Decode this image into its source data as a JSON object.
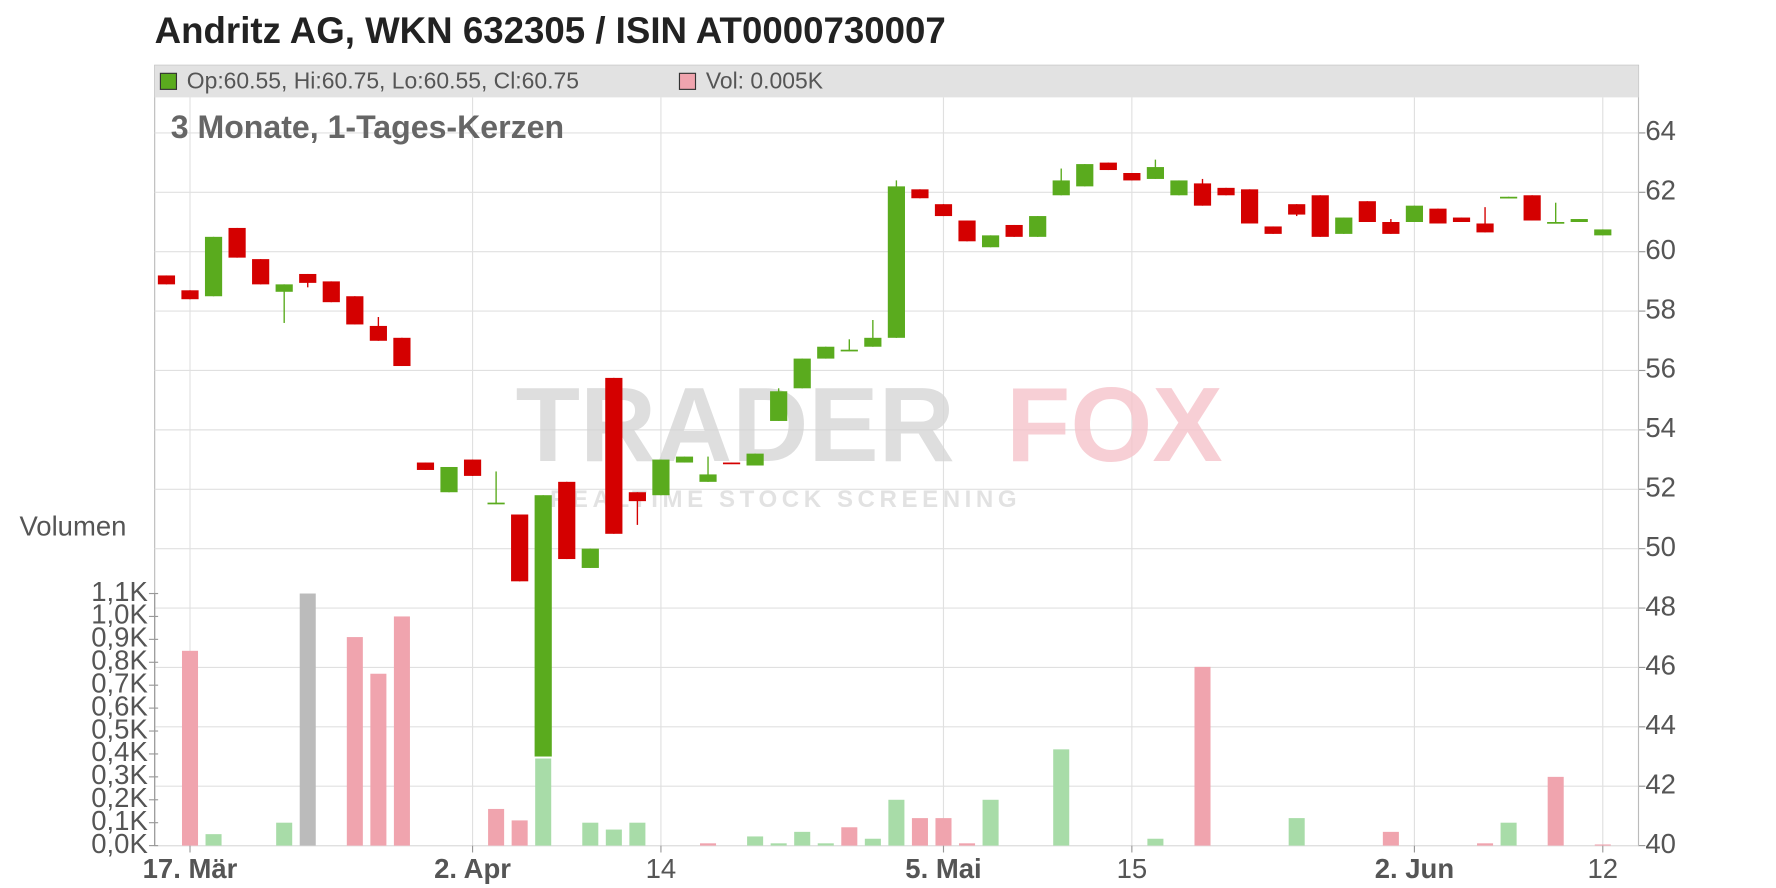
{
  "chart_data": {
    "type": "candlestick",
    "title": "Andritz AG, WKN 632305 / ISIN AT0000730007",
    "subtitle": "3 Monate, 1-Tages-Kerzen",
    "legend": {
      "price": "Op:60.55, Hi:60.75, Lo:60.55, Cl:60.75",
      "volume": "Vol: 0.005K",
      "price_color": "#5aab1e",
      "volume_color": "#f0a4ae"
    },
    "watermark": {
      "brand_left": "TRADER",
      "brand_right": "FOX",
      "tagline": "REALTIME STOCK SCREENING"
    },
    "categories": [
      null,
      "17. Mär",
      null,
      null,
      null,
      null,
      null,
      null,
      null,
      null,
      null,
      null,
      null,
      "2. Apr",
      null,
      null,
      null,
      null,
      null,
      null,
      null,
      "14",
      null,
      null,
      null,
      null,
      null,
      null,
      null,
      null,
      null,
      null,
      null,
      "5. Mai",
      null,
      null,
      null,
      null,
      null,
      null,
      null,
      "15",
      null,
      null,
      null,
      null,
      null,
      null,
      null,
      null,
      null,
      null,
      null,
      "2. Jun",
      null,
      null,
      null,
      null,
      null,
      null,
      null,
      "12"
    ],
    "open": [
      59.2,
      58.7,
      58.5,
      60.8,
      59.75,
      58.65,
      59.25,
      59.0,
      58.5,
      57.5,
      57.1,
      52.9,
      51.9,
      53.0,
      51.5,
      51.15,
      43.0,
      52.25,
      49.35,
      55.75,
      51.9,
      51.8,
      52.9,
      52.25,
      52.9,
      52.8,
      54.3,
      55.4,
      56.4,
      56.65,
      56.8,
      57.1,
      62.1,
      61.6,
      61.05,
      60.15,
      60.9,
      60.5,
      61.9,
      62.2,
      63.0,
      62.65,
      62.45,
      61.9,
      62.3,
      62.15,
      62.1,
      60.85,
      61.6,
      61.9,
      60.6,
      61.7,
      61.0,
      61.0,
      61.45,
      61.15,
      60.95,
      61.8,
      61.9,
      60.95,
      61.0,
      60.55
    ],
    "high": [
      59.2,
      58.7,
      60.5,
      60.8,
      59.75,
      58.9,
      59.25,
      59.0,
      58.5,
      57.8,
      57.1,
      52.9,
      52.75,
      53.0,
      52.6,
      51.15,
      51.8,
      52.25,
      50.0,
      55.75,
      51.9,
      53.0,
      53.1,
      53.1,
      52.9,
      53.2,
      55.4,
      56.4,
      56.8,
      57.05,
      57.7,
      62.4,
      62.1,
      61.6,
      61.05,
      60.55,
      60.9,
      61.2,
      62.8,
      62.95,
      63.0,
      62.65,
      63.1,
      62.4,
      62.45,
      62.15,
      62.1,
      60.85,
      61.6,
      61.9,
      61.15,
      61.7,
      61.1,
      61.55,
      61.45,
      61.15,
      61.5,
      61.85,
      61.9,
      61.65,
      61.1,
      60.75
    ],
    "low": [
      58.9,
      58.4,
      58.5,
      59.8,
      58.9,
      57.6,
      58.8,
      58.3,
      57.55,
      57.0,
      56.15,
      52.65,
      51.9,
      52.45,
      51.5,
      48.9,
      43.0,
      49.65,
      49.35,
      50.5,
      50.8,
      51.8,
      52.9,
      52.25,
      52.85,
      52.8,
      54.3,
      55.4,
      56.4,
      56.65,
      56.8,
      57.1,
      61.8,
      61.2,
      60.35,
      60.15,
      60.5,
      60.5,
      61.9,
      62.2,
      62.75,
      62.4,
      62.45,
      61.9,
      61.55,
      61.9,
      60.95,
      60.6,
      61.2,
      60.5,
      60.6,
      61.0,
      60.6,
      61.0,
      60.95,
      61.0,
      60.65,
      61.8,
      61.05,
      60.95,
      61.0,
      60.55
    ],
    "close": [
      58.9,
      58.4,
      60.5,
      59.8,
      58.9,
      58.9,
      58.95,
      58.3,
      57.55,
      57.0,
      56.15,
      52.65,
      52.75,
      52.45,
      51.55,
      48.9,
      51.8,
      49.65,
      50.0,
      50.5,
      51.6,
      53.0,
      53.1,
      52.5,
      52.85,
      53.2,
      55.3,
      56.4,
      56.8,
      56.7,
      57.1,
      62.2,
      61.8,
      61.2,
      60.35,
      60.55,
      60.5,
      61.2,
      62.4,
      62.95,
      62.75,
      62.4,
      62.85,
      62.4,
      61.55,
      61.9,
      60.95,
      60.6,
      61.25,
      60.5,
      61.15,
      61.0,
      60.6,
      61.55,
      60.95,
      61.0,
      60.65,
      61.85,
      61.05,
      61.0,
      61.1,
      60.75
    ],
    "up_color": "#5aab1e",
    "down_color": "#d40000",
    "ylim": [
      40,
      64
    ],
    "yticks": [
      40,
      42,
      44,
      46,
      48,
      50,
      52,
      54,
      56,
      58,
      60,
      62,
      64
    ],
    "grid": true,
    "volume": {
      "label": "Volumen",
      "values": [
        0,
        0.85,
        0.05,
        0,
        0,
        0.1,
        1.1,
        0,
        0.91,
        0.75,
        1.0,
        0,
        0,
        0,
        0.16,
        0.11,
        0.38,
        0,
        0.1,
        0.07,
        0.1,
        0,
        0,
        0.01,
        0,
        0.04,
        0.01,
        0.06,
        0.01,
        0.08,
        0.03,
        0.2,
        0.12,
        0.12,
        0.01,
        0.2,
        0,
        0,
        0.42,
        0,
        0,
        0,
        0.03,
        0,
        0.78,
        0,
        0,
        0,
        0.12,
        0,
        0,
        0,
        0.06,
        0,
        0,
        0,
        0.01,
        0.1,
        0,
        0.3,
        0,
        0.005
      ],
      "colors": [
        "#f0a4ae",
        "#f0a4ae",
        "#a8dca8",
        "#f0a4ae",
        "#f0a4ae",
        "#a8dca8",
        "#bbbbbb",
        "#f0a4ae",
        "#f0a4ae",
        "#f0a4ae",
        "#f0a4ae",
        "#f0a4ae",
        "#a8dca8",
        "#f0a4ae",
        "#f0a4ae",
        "#f0a4ae",
        "#a8dca8",
        "#f0a4ae",
        "#a8dca8",
        "#a8dca8",
        "#a8dca8",
        "#a8dca8",
        "#a8dca8",
        "#f0a4ae",
        "#f0a4ae",
        "#a8dca8",
        "#a8dca8",
        "#a8dca8",
        "#a8dca8",
        "#f0a4ae",
        "#a8dca8",
        "#a8dca8",
        "#f0a4ae",
        "#f0a4ae",
        "#f0a4ae",
        "#a8dca8",
        "#f0a4ae",
        "#a8dca8",
        "#a8dca8",
        "#a8dca8",
        "#f0a4ae",
        "#f0a4ae",
        "#a8dca8",
        "#a8dca8",
        "#f0a4ae",
        "#f0a4ae",
        "#f0a4ae",
        "#f0a4ae",
        "#a8dca8",
        "#f0a4ae",
        "#a8dca8",
        "#f0a4ae",
        "#f0a4ae",
        "#a8dca8",
        "#f0a4ae",
        "#f0a4ae",
        "#f0a4ae",
        "#a8dca8",
        "#f0a4ae",
        "#f0a4ae",
        "#a8dca8",
        "#f0a4ae"
      ],
      "ylim": [
        0,
        1.1
      ],
      "yticks": [
        {
          "value": 0,
          "label": "0,0K"
        },
        {
          "value": 0.1,
          "label": "0,1K"
        },
        {
          "value": 0.2,
          "label": "0,2K"
        },
        {
          "value": 0.3,
          "label": "0,3K"
        },
        {
          "value": 0.4,
          "label": "0,4K"
        },
        {
          "value": 0.5,
          "label": "0,5K"
        },
        {
          "value": 0.6,
          "label": "0,6K"
        },
        {
          "value": 0.7,
          "label": "0,7K"
        },
        {
          "value": 0.8,
          "label": "0,8K"
        },
        {
          "value": 0.9,
          "label": "0,9K"
        },
        {
          "value": 1.0,
          "label": "1,0K"
        },
        {
          "value": 1.1,
          "label": "1,1K"
        }
      ]
    }
  }
}
